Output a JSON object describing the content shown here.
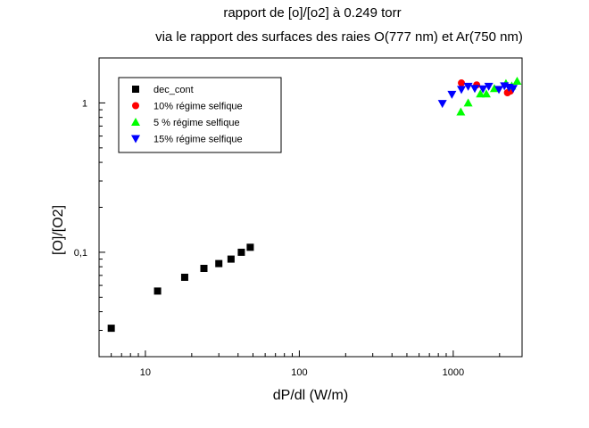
{
  "chart_data": {
    "type": "scatter",
    "title": "rapport de [o]/[o2] à 0.249 torr",
    "subtitle": "via le rapport des surfaces des raies O(777 nm) et Ar(750 nm)",
    "xlabel": "dP/dl (W/m)",
    "ylabel": "[O]/[O2]",
    "x_scale": "log",
    "y_scale": "log",
    "xlim": [
      5,
      2800
    ],
    "ylim": [
      0.02,
      2.0
    ],
    "x_ticks": [
      "10",
      "100",
      "1000"
    ],
    "y_ticks": [
      "0,1",
      "1"
    ],
    "legend_position": "top-left",
    "series": [
      {
        "name": "dec_cont",
        "marker": "square",
        "color": "#000000",
        "x": [
          6,
          12,
          18,
          24,
          30,
          36,
          42,
          48
        ],
        "y": [
          0.031,
          0.055,
          0.068,
          0.078,
          0.084,
          0.09,
          0.1,
          0.108
        ]
      },
      {
        "name": "10% régime selfique",
        "marker": "circle",
        "color": "#ff0000",
        "x": [
          1130,
          1420,
          2250,
          2350
        ],
        "y": [
          1.36,
          1.32,
          1.17,
          1.2
        ]
      },
      {
        "name": "5 % régime selfique",
        "marker": "triangle-up",
        "color": "#00ff00",
        "x": [
          1120,
          1250,
          1500,
          1640,
          1850,
          2200,
          2400,
          2600
        ],
        "y": [
          0.87,
          1.0,
          1.15,
          1.15,
          1.25,
          1.35,
          1.3,
          1.4
        ]
      },
      {
        "name": "15% régime  selfique",
        "marker": "triangle-down",
        "color": "#0000ff",
        "x": [
          850,
          980,
          1130,
          1250,
          1380,
          1560,
          1700,
          1980,
          2150,
          2300,
          2450
        ],
        "y": [
          0.99,
          1.14,
          1.23,
          1.29,
          1.25,
          1.24,
          1.29,
          1.23,
          1.3,
          1.27,
          1.25
        ]
      }
    ]
  }
}
